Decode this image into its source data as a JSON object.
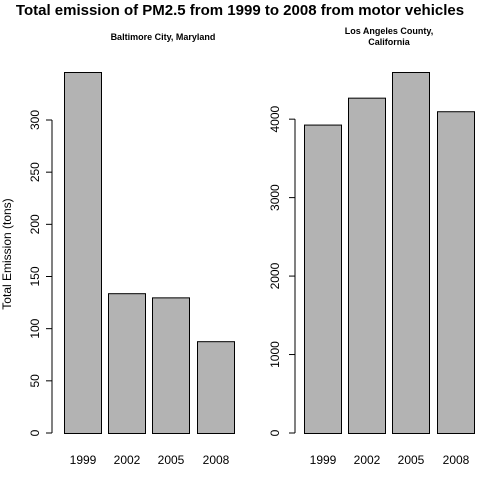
{
  "title": "Total emission of PM2.5 from 1999 to 2008 from motor vehicles",
  "ylabel": "Total Emission (tons)",
  "bar_color": "#b3b3b3",
  "chart_data": [
    {
      "type": "bar",
      "title_lines": [
        "Baltimore City, Maryland"
      ],
      "categories": [
        "1999",
        "2002",
        "2005",
        "2008"
      ],
      "values": [
        346,
        134,
        130,
        88
      ],
      "yticks": [
        0,
        50,
        100,
        150,
        200,
        250,
        300
      ],
      "ylim": [
        0,
        346
      ]
    },
    {
      "type": "bar",
      "title_lines": [
        "Los Angeles County,",
        "California"
      ],
      "categories": [
        "1999",
        "2002",
        "2005",
        "2008"
      ],
      "values": [
        3931,
        4274,
        4601,
        4101
      ],
      "yticks": [
        0,
        1000,
        2000,
        3000,
        4000
      ],
      "ylim": [
        0,
        4601
      ]
    }
  ]
}
